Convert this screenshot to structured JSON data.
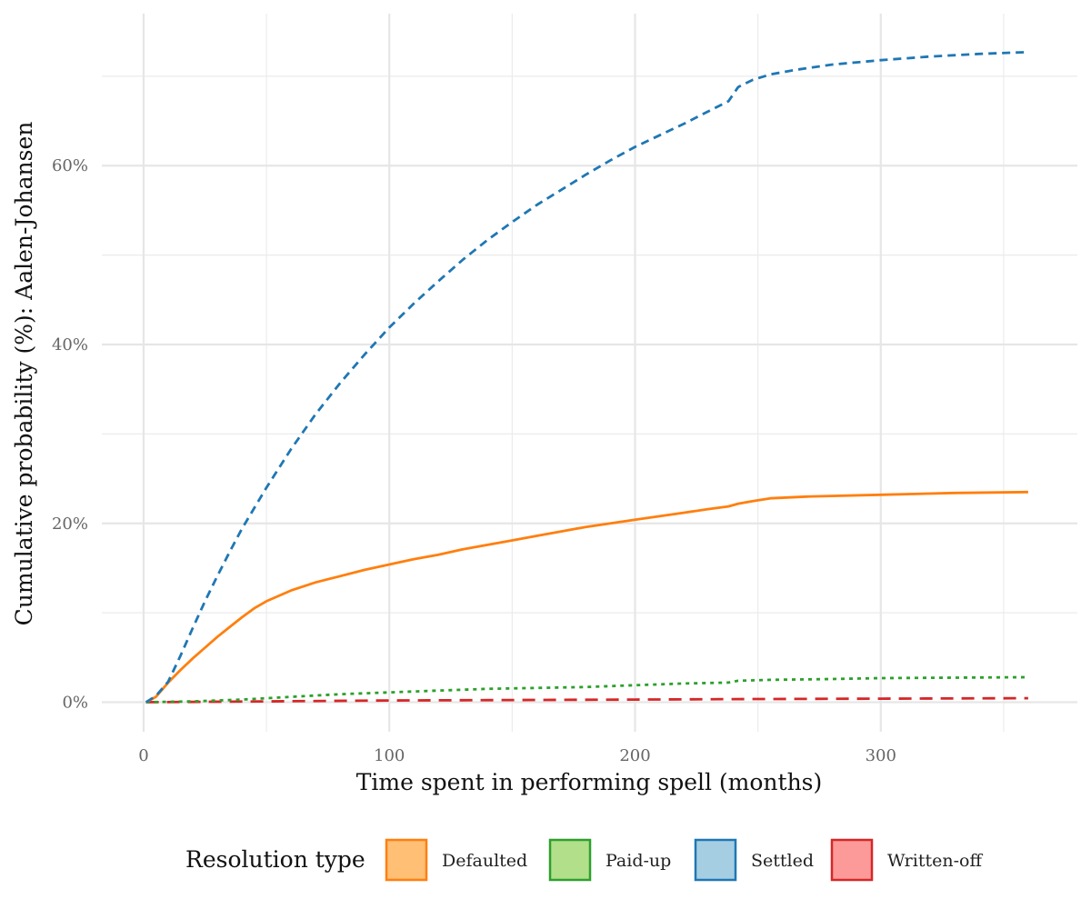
{
  "chart_data": {
    "type": "line",
    "title": "",
    "xlabel": "Time spent in performing spell (months)",
    "ylabel": "Cumulative probability (%): Aalen-Johansen",
    "xlim": [
      -17,
      380
    ],
    "ylim": [
      -3.3,
      77
    ],
    "x_ticks": [
      0,
      100,
      200,
      300
    ],
    "x_tick_labels": [
      "0",
      "100",
      "200",
      "300"
    ],
    "y_ticks": [
      0,
      20,
      40,
      60
    ],
    "y_tick_labels": [
      "0%",
      "20%",
      "40%",
      "60%"
    ],
    "grid": true,
    "legend": {
      "title": "Resolution type",
      "position": "bottom",
      "entries": [
        "Defaulted",
        "Paid-up",
        "Settled",
        "Written-off"
      ]
    },
    "series": [
      {
        "name": "Defaulted",
        "color": "#ff7f0e",
        "fill": "#ffbf75",
        "dash": "solid",
        "points": [
          [
            1,
            0
          ],
          [
            5,
            0.6
          ],
          [
            10,
            2.2
          ],
          [
            15,
            3.6
          ],
          [
            20,
            4.9
          ],
          [
            25,
            6.1
          ],
          [
            30,
            7.3
          ],
          [
            35,
            8.4
          ],
          [
            40,
            9.5
          ],
          [
            45,
            10.5
          ],
          [
            50,
            11.3
          ],
          [
            55,
            11.9
          ],
          [
            60,
            12.5
          ],
          [
            70,
            13.4
          ],
          [
            80,
            14.1
          ],
          [
            90,
            14.8
          ],
          [
            100,
            15.4
          ],
          [
            110,
            16
          ],
          [
            120,
            16.5
          ],
          [
            130,
            17.1
          ],
          [
            140,
            17.6
          ],
          [
            150,
            18.1
          ],
          [
            160,
            18.6
          ],
          [
            170,
            19.1
          ],
          [
            180,
            19.6
          ],
          [
            190,
            20
          ],
          [
            200,
            20.4
          ],
          [
            210,
            20.8
          ],
          [
            220,
            21.2
          ],
          [
            230,
            21.6
          ],
          [
            238,
            21.9
          ],
          [
            242,
            22.2
          ],
          [
            248,
            22.5
          ],
          [
            255,
            22.8
          ],
          [
            270,
            23
          ],
          [
            300,
            23.2
          ],
          [
            330,
            23.4
          ],
          [
            360,
            23.5
          ]
        ]
      },
      {
        "name": "Paid-up",
        "color": "#2ca02c",
        "fill": "#b2df8a",
        "dash": "dotted",
        "points": [
          [
            1,
            0
          ],
          [
            20,
            0.1
          ],
          [
            40,
            0.3
          ],
          [
            60,
            0.6
          ],
          [
            80,
            0.9
          ],
          [
            100,
            1.1
          ],
          [
            120,
            1.3
          ],
          [
            140,
            1.5
          ],
          [
            160,
            1.6
          ],
          [
            180,
            1.7
          ],
          [
            200,
            1.9
          ],
          [
            220,
            2.1
          ],
          [
            238,
            2.2
          ],
          [
            242,
            2.4
          ],
          [
            255,
            2.5
          ],
          [
            280,
            2.6
          ],
          [
            300,
            2.7
          ],
          [
            330,
            2.75
          ],
          [
            360,
            2.8
          ]
        ]
      },
      {
        "name": "Settled",
        "color": "#1f77b4",
        "fill": "#a6cee3",
        "dash": "dashed",
        "points": [
          [
            1,
            0
          ],
          [
            5,
            0.7
          ],
          [
            10,
            2.3
          ],
          [
            15,
            5.2
          ],
          [
            20,
            8.3
          ],
          [
            25,
            11.3
          ],
          [
            30,
            14.1
          ],
          [
            35,
            16.8
          ],
          [
            40,
            19.4
          ],
          [
            45,
            21.7
          ],
          [
            50,
            24
          ],
          [
            60,
            28.3
          ],
          [
            70,
            32.2
          ],
          [
            80,
            35.7
          ],
          [
            90,
            38.9
          ],
          [
            100,
            41.9
          ],
          [
            110,
            44.6
          ],
          [
            120,
            47.1
          ],
          [
            130,
            49.5
          ],
          [
            140,
            51.7
          ],
          [
            150,
            53.7
          ],
          [
            160,
            55.6
          ],
          [
            170,
            57.3
          ],
          [
            180,
            59
          ],
          [
            190,
            60.6
          ],
          [
            200,
            62.1
          ],
          [
            210,
            63.4
          ],
          [
            220,
            64.7
          ],
          [
            230,
            66.1
          ],
          [
            238,
            67.2
          ],
          [
            242,
            68.8
          ],
          [
            248,
            69.6
          ],
          [
            255,
            70.2
          ],
          [
            265,
            70.7
          ],
          [
            280,
            71.3
          ],
          [
            300,
            71.8
          ],
          [
            320,
            72.2
          ],
          [
            340,
            72.5
          ],
          [
            360,
            72.7
          ]
        ]
      },
      {
        "name": "Written-off",
        "color": "#d62728",
        "fill": "#fb9a99",
        "dash": "longdash",
        "points": [
          [
            1,
            0
          ],
          [
            50,
            0.1
          ],
          [
            100,
            0.2
          ],
          [
            150,
            0.25
          ],
          [
            200,
            0.3
          ],
          [
            240,
            0.35
          ],
          [
            300,
            0.4
          ],
          [
            360,
            0.45
          ]
        ]
      }
    ]
  }
}
